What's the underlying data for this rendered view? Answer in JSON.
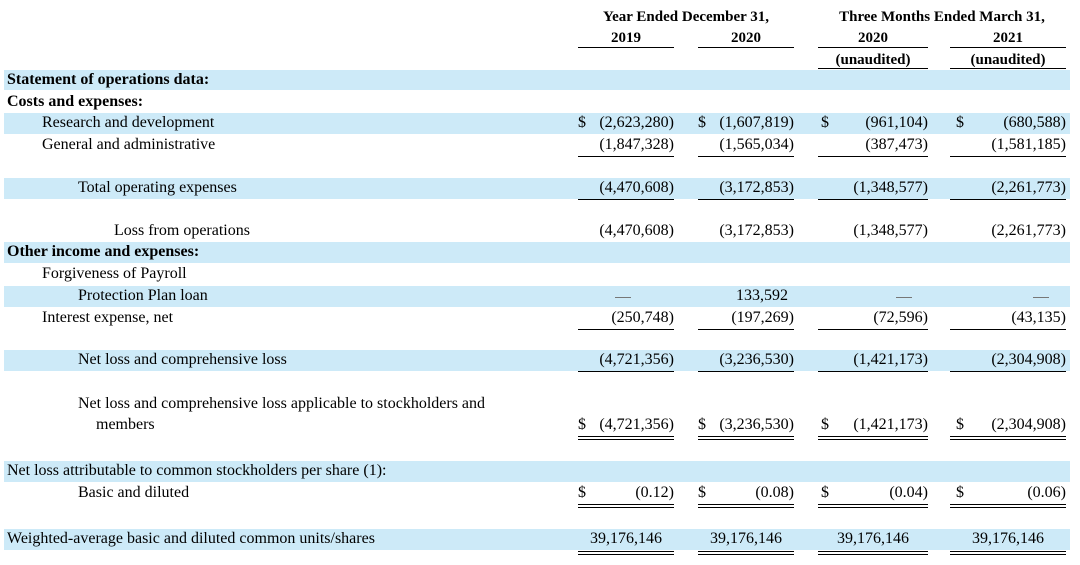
{
  "header": {
    "year_group": "Year Ended December 31,",
    "quarter_group": "Three Months Ended March 31,",
    "col_2019": "2019",
    "col_2020": "2020",
    "col_q2020": "2020",
    "col_q2021": "2021",
    "unaudited": "(unaudited)"
  },
  "currency_symbol": "$",
  "rows": {
    "statement_heading": "Statement of operations data:",
    "costs_heading": "Costs and expenses:",
    "rd": {
      "label": "Research and development",
      "v2019": "(2,623,280)",
      "v2020": "(1,607,819)",
      "q2020": "(961,104)",
      "q2021": "(680,588)"
    },
    "ga": {
      "label": "General and administrative",
      "v2019": "(1,847,328)",
      "v2020": "(1,565,034)",
      "q2020": "(387,473)",
      "q2021": "(1,581,185)"
    },
    "total_opex": {
      "label": "Total operating expenses",
      "v2019": "(4,470,608)",
      "v2020": "(3,172,853)",
      "q2020": "(1,348,577)",
      "q2021": "(2,261,773)"
    },
    "loss_ops": {
      "label": "Loss from operations",
      "v2019": "(4,470,608)",
      "v2020": "(3,172,853)",
      "q2020": "(1,348,577)",
      "q2021": "(2,261,773)"
    },
    "other_heading": "Other income and expenses:",
    "ppp_line1": "Forgiveness of Payroll",
    "ppp": {
      "label": "Protection Plan loan",
      "v2020": "133,592"
    },
    "interest": {
      "label": "Interest expense, net",
      "v2019": "(250,748)",
      "v2020": "(197,269)",
      "q2020": "(72,596)",
      "q2021": "(43,135)"
    },
    "net_loss": {
      "label": "Net loss and comprehensive loss",
      "v2019": "(4,721,356)",
      "v2020": "(3,236,530)",
      "q2020": "(1,421,173)",
      "q2021": "(2,304,908)"
    },
    "net_loss_app": {
      "label1": "Net loss and comprehensive loss applicable to stockholders and",
      "label2": "members",
      "v2019": "(4,721,356)",
      "v2020": "(3,236,530)",
      "q2020": "(1,421,173)",
      "q2021": "(2,304,908)"
    },
    "per_share_heading": "Net loss attributable to common stockholders per share (1):",
    "basic": {
      "label": "Basic and diluted",
      "v2019": "(0.12)",
      "v2020": "(0.08)",
      "q2020": "(0.04)",
      "q2021": "(0.06)"
    },
    "weighted": {
      "label": "Weighted-average basic and diluted common units/shares",
      "v2019": "39,176,146",
      "v2020": "39,176,146",
      "q2020": "39,176,146",
      "q2021": "39,176,146"
    }
  },
  "colors": {
    "band": "#cdeaf8"
  }
}
